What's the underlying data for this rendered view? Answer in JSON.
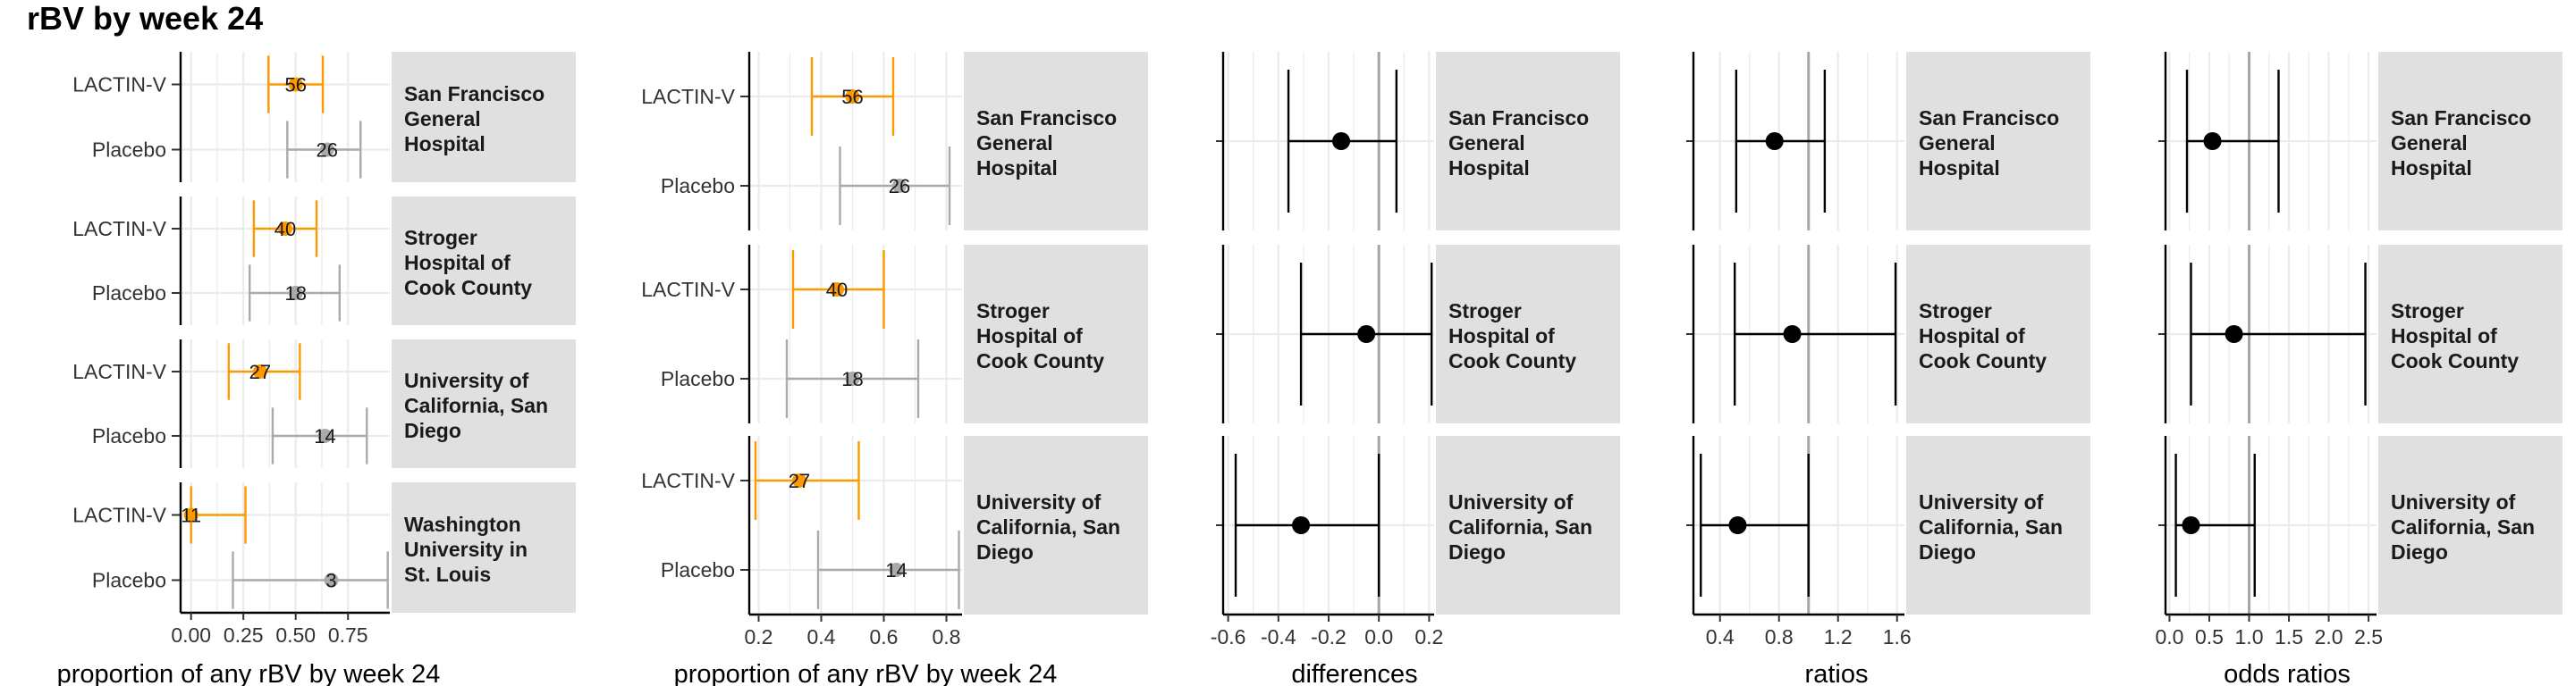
{
  "title": "rBV by week 24",
  "colors": {
    "lactin": "#ff9900",
    "placebo": "#aaaaaa",
    "strip_bg": "#e0e0e0",
    "grid": "#ebebeb",
    "ref_line": "#a6a6a6",
    "point": "#000000"
  },
  "chart_data": [
    {
      "type": "forest",
      "id": "proportions-all-sites",
      "xlabel": "proportion of any rBV by week 24",
      "xlim": [
        -0.05,
        0.95
      ],
      "xticks": [
        0,
        0.25,
        0.5,
        0.75
      ],
      "xtick_labels": [
        "0.00",
        "0.25",
        "0.50",
        "0.75"
      ],
      "facets": [
        {
          "label": "San Francisco General Hospital",
          "strip_lines": [
            "San Francisco",
            "General",
            "Hospital"
          ],
          "rows": [
            {
              "arm": "LACTIN-V",
              "n": "56",
              "est": 0.5,
              "lo": 0.37,
              "hi": 0.63
            },
            {
              "arm": "Placebo",
              "n": "26",
              "est": 0.65,
              "lo": 0.46,
              "hi": 0.81
            }
          ]
        },
        {
          "label": "Stroger Hospital of Cook County",
          "strip_lines": [
            "Stroger",
            "Hospital of",
            "Cook County"
          ],
          "rows": [
            {
              "arm": "LACTIN-V",
              "n": "40",
              "est": 0.45,
              "lo": 0.3,
              "hi": 0.6
            },
            {
              "arm": "Placebo",
              "n": "18",
              "est": 0.5,
              "lo": 0.28,
              "hi": 0.71
            }
          ]
        },
        {
          "label": "University of California, San Diego",
          "strip_lines": [
            "University of",
            "California, San",
            "Diego"
          ],
          "rows": [
            {
              "arm": "LACTIN-V",
              "n": "27",
              "est": 0.33,
              "lo": 0.18,
              "hi": 0.52
            },
            {
              "arm": "Placebo",
              "n": "14",
              "est": 0.64,
              "lo": 0.39,
              "hi": 0.84
            }
          ]
        },
        {
          "label": "Washington University in St. Louis",
          "strip_lines": [
            "Washington",
            "University in",
            "St. Louis"
          ],
          "rows": [
            {
              "arm": "LACTIN-V",
              "n": "11",
              "est": 0.0,
              "lo": 0.0,
              "hi": 0.26
            },
            {
              "arm": "Placebo",
              "n": "3",
              "est": 0.67,
              "lo": 0.2,
              "hi": 0.94
            }
          ]
        }
      ]
    },
    {
      "type": "forest",
      "id": "proportions-three-sites",
      "xlabel": "proportion of any rBV by week 24",
      "xlim": [
        0.17,
        0.85
      ],
      "xticks": [
        0.2,
        0.4,
        0.6,
        0.8
      ],
      "xtick_labels": [
        "0.2",
        "0.4",
        "0.6",
        "0.8"
      ],
      "facets": [
        {
          "label": "San Francisco General Hospital",
          "strip_lines": [
            "San Francisco",
            "General",
            "Hospital"
          ],
          "rows": [
            {
              "arm": "LACTIN-V",
              "n": "56",
              "est": 0.5,
              "lo": 0.37,
              "hi": 0.63
            },
            {
              "arm": "Placebo",
              "n": "26",
              "est": 0.65,
              "lo": 0.46,
              "hi": 0.81
            }
          ]
        },
        {
          "label": "Stroger Hospital of Cook County",
          "strip_lines": [
            "Stroger",
            "Hospital of",
            "Cook County"
          ],
          "rows": [
            {
              "arm": "LACTIN-V",
              "n": "40",
              "est": 0.45,
              "lo": 0.31,
              "hi": 0.6
            },
            {
              "arm": "Placebo",
              "n": "18",
              "est": 0.5,
              "lo": 0.29,
              "hi": 0.71
            }
          ]
        },
        {
          "label": "University of California, San Diego",
          "strip_lines": [
            "University of",
            "California, San",
            "Diego"
          ],
          "rows": [
            {
              "arm": "LACTIN-V",
              "n": "27",
              "est": 0.33,
              "lo": 0.19,
              "hi": 0.52
            },
            {
              "arm": "Placebo",
              "n": "14",
              "est": 0.64,
              "lo": 0.39,
              "hi": 0.84
            }
          ]
        }
      ]
    },
    {
      "type": "effect",
      "id": "differences",
      "xlabel": "differences",
      "xlim": [
        -0.62,
        0.22
      ],
      "ref": 0,
      "xticks": [
        -0.6,
        -0.4,
        -0.2,
        0.0,
        0.2
      ],
      "xtick_labels": [
        "-0.6",
        "-0.4",
        "-0.2",
        "0.0",
        "0.2"
      ],
      "facets": [
        {
          "label": "San Francisco General Hospital",
          "strip_lines": [
            "San Francisco",
            "General",
            "Hospital"
          ],
          "est": -0.15,
          "lo": -0.36,
          "hi": 0.07
        },
        {
          "label": "Stroger Hospital of Cook County",
          "strip_lines": [
            "Stroger",
            "Hospital of",
            "Cook County"
          ],
          "est": -0.05,
          "lo": -0.31,
          "hi": 0.21
        },
        {
          "label": "University of California, San Diego",
          "strip_lines": [
            "University of",
            "California, San",
            "Diego"
          ],
          "est": -0.31,
          "lo": -0.57,
          "hi": 0.0
        }
      ]
    },
    {
      "type": "effect",
      "id": "ratios",
      "xlabel": "ratios",
      "xlim": [
        0.22,
        1.65
      ],
      "ref": 1,
      "xticks": [
        0.4,
        0.8,
        1.2,
        1.6
      ],
      "xtick_labels": [
        "0.4",
        "0.8",
        "1.2",
        "1.6"
      ],
      "facets": [
        {
          "label": "San Francisco General Hospital",
          "strip_lines": [
            "San Francisco",
            "General",
            "Hospital"
          ],
          "est": 0.77,
          "lo": 0.51,
          "hi": 1.11
        },
        {
          "label": "Stroger Hospital of Cook County",
          "strip_lines": [
            "Stroger",
            "Hospital of",
            "Cook County"
          ],
          "est": 0.89,
          "lo": 0.5,
          "hi": 1.59
        },
        {
          "label": "University of California, San Diego",
          "strip_lines": [
            "University of",
            "California, San",
            "Diego"
          ],
          "est": 0.52,
          "lo": 0.27,
          "hi": 1.0
        }
      ]
    },
    {
      "type": "effect",
      "id": "odds-ratios",
      "xlabel": "odds ratios",
      "xlim": [
        -0.05,
        2.6
      ],
      "ref": 1,
      "xticks": [
        0,
        0.5,
        1.0,
        1.5,
        2.0,
        2.5
      ],
      "xtick_labels": [
        "0.0",
        "0.5",
        "1.0",
        "1.5",
        "2.0",
        "2.5"
      ],
      "facets": [
        {
          "label": "San Francisco General Hospital",
          "strip_lines": [
            "San Francisco",
            "General",
            "Hospital"
          ],
          "est": 0.54,
          "lo": 0.22,
          "hi": 1.37
        },
        {
          "label": "Stroger Hospital of Cook County",
          "strip_lines": [
            "Stroger",
            "Hospital of",
            "Cook County"
          ],
          "est": 0.81,
          "lo": 0.27,
          "hi": 2.46
        },
        {
          "label": "University of California, San Diego",
          "strip_lines": [
            "University of",
            "California, San",
            "Diego"
          ],
          "est": 0.27,
          "lo": 0.08,
          "hi": 1.07
        }
      ]
    }
  ]
}
